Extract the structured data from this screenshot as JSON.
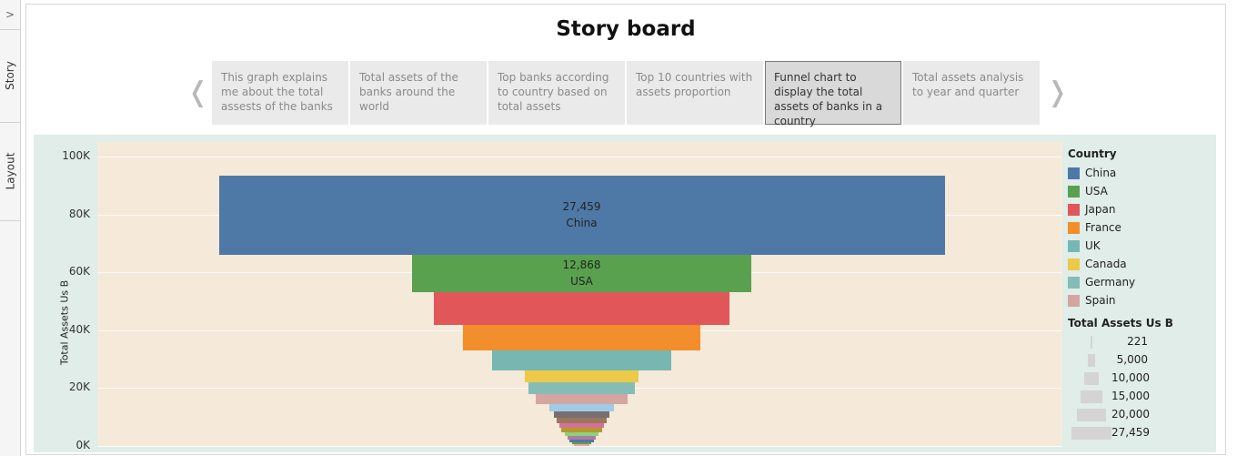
{
  "rail": {
    "expand_icon": "chevron-right-icon",
    "story_label": "Story",
    "layout_label": "Layout"
  },
  "story": {
    "title": "Story board",
    "points": [
      "This graph explains me about the total assests of the banks",
      "Total assets of the banks around the world",
      "Top banks according to country based on total assets",
      "Top 10 countries with assets proportion",
      "Funnel chart to display the total assets of banks in a country",
      "Total assets analysis to year and quarter"
    ],
    "active_point": 4
  },
  "chart_data": {
    "type": "bar",
    "subtype": "funnel",
    "ylabel": "Total Assets Us B",
    "y_ticks": [
      "0K",
      "20K",
      "40K",
      "60K",
      "80K",
      "100K"
    ],
    "ylim": [
      0,
      105000
    ],
    "categories": [
      "China",
      "USA",
      "Japan",
      "France",
      "UK",
      "Canada",
      "Germany",
      "Spain",
      "",
      "",
      "",
      "",
      "",
      "",
      "",
      "",
      "",
      ""
    ],
    "values": [
      27459,
      12868,
      11200,
      9000,
      6800,
      4300,
      4000,
      3500,
      2450,
      2100,
      1900,
      1700,
      1550,
      1300,
      1100,
      900,
      750,
      600
    ],
    "colors": [
      "#4e79a7",
      "#59a14f",
      "#e15759",
      "#f28e2b",
      "#76b7b2",
      "#edc948",
      "#86bcb6",
      "#d4a6a0",
      "#a0cbe8",
      "#79706e",
      "#9d7660",
      "#d37295",
      "#b6992d",
      "#8cd17d",
      "#b07aa1",
      "#4e79a7",
      "#59a14f",
      "#ff9d9a"
    ],
    "data_labels": [
      {
        "value": "27,459",
        "category": "China"
      },
      {
        "value": "12,868",
        "category": "USA"
      }
    ],
    "legend": {
      "title": "Country",
      "placement": "right",
      "items": [
        {
          "name": "China",
          "color": "#4e79a7"
        },
        {
          "name": "USA",
          "color": "#59a14f"
        },
        {
          "name": "Japan",
          "color": "#e15759"
        },
        {
          "name": "France",
          "color": "#f28e2b"
        },
        {
          "name": "UK",
          "color": "#76b7b2"
        },
        {
          "name": "Canada",
          "color": "#edc948"
        },
        {
          "name": "Germany",
          "color": "#86bcb6"
        },
        {
          "name": "Spain",
          "color": "#d4a6a0"
        }
      ]
    },
    "size_legend": {
      "title": "Total Assets Us B",
      "values": [
        221,
        5000,
        10000,
        15000,
        20000,
        27459
      ],
      "labels": [
        "221",
        "5,000",
        "10,000",
        "15,000",
        "20,000",
        "27,459"
      ]
    }
  }
}
